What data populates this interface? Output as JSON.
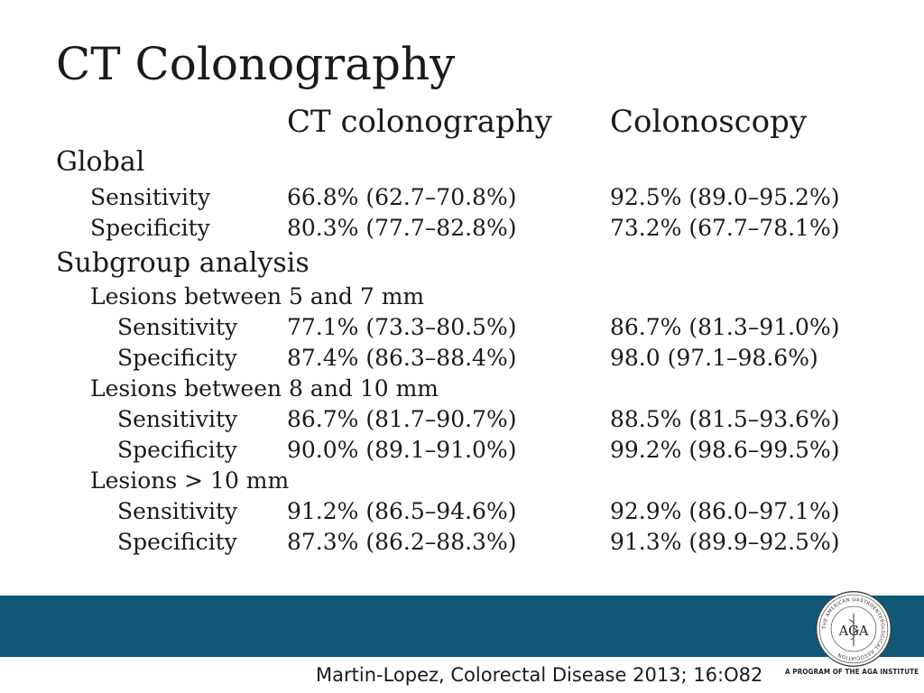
{
  "title": "CT Colonography",
  "columns": {
    "ct": "CT colonography",
    "colonoscopy": "Colonoscopy"
  },
  "global": {
    "label": "Global",
    "rows": [
      {
        "label": "Sensitivity",
        "ct": "66.8% (62.7–70.8%)",
        "colonoscopy": "92.5% (89.0–95.2%)"
      },
      {
        "label": "Specificity",
        "ct": "80.3% (77.7–82.8%)",
        "colonoscopy": "73.2% (67.7–78.1%)"
      }
    ]
  },
  "subgroup": {
    "label": "Subgroup analysis",
    "groups": [
      {
        "label": "Lesions between 5 and 7 mm",
        "rows": [
          {
            "label": "Sensitivity",
            "ct": "77.1% (73.3–80.5%)",
            "colonoscopy": "86.7% (81.3–91.0%)"
          },
          {
            "label": "Specificity",
            "ct": "87.4% (86.3–88.4%)",
            "colonoscopy": "98.0 (97.1–98.6%)"
          }
        ]
      },
      {
        "label": "Lesions between 8 and 10 mm",
        "rows": [
          {
            "label": "Sensitivity",
            "ct": "86.7% (81.7–90.7%)",
            "colonoscopy": "88.5% (81.5–93.6%)"
          },
          {
            "label": "Specificity",
            "ct": "90.0% (89.1–91.0%)",
            "colonoscopy": "99.2% (98.6–99.5%)"
          }
        ]
      },
      {
        "label": "Lesions > 10 mm",
        "rows": [
          {
            "label": "Sensitivity",
            "ct": "91.2% (86.5–94.6%)",
            "colonoscopy": "92.9% (86.0–97.1%)"
          },
          {
            "label": "Specificity",
            "ct": "87.3% (86.2–88.3%)",
            "colonoscopy": "91.3% (89.9–92.5%)"
          }
        ]
      }
    ]
  },
  "footer": {
    "citation": "Martin-Lopez, Colorectal Disease 2013; 16:O82",
    "logo_caption": "A PROGRAM OF THE AGA INSTITUTE",
    "logo_ring_text": "THE AMERICAN GASTROENTEROLOGICAL ASSOCIATION",
    "logo_letters": "AGA",
    "band_color": "#0f5878"
  }
}
